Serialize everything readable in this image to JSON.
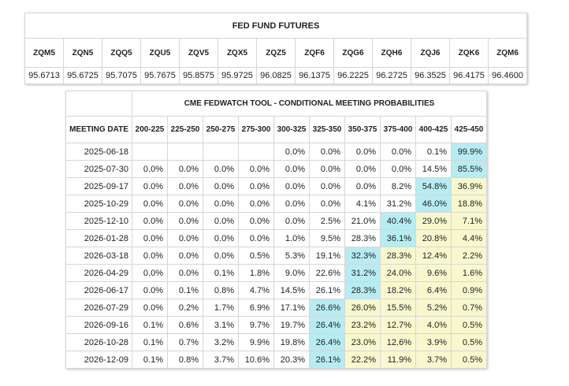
{
  "futures": {
    "title": "FED FUND FUTURES",
    "contracts": [
      {
        "code": "ZQM5",
        "price": "95.6713"
      },
      {
        "code": "ZQN5",
        "price": "95.6725"
      },
      {
        "code": "ZQQ5",
        "price": "95.7075"
      },
      {
        "code": "ZQU5",
        "price": "95.7675"
      },
      {
        "code": "ZQV5",
        "price": "95.8575"
      },
      {
        "code": "ZQX5",
        "price": "95.9725"
      },
      {
        "code": "ZQZ5",
        "price": "96.0825"
      },
      {
        "code": "ZQF6",
        "price": "96.1375"
      },
      {
        "code": "ZQG6",
        "price": "96.2225"
      },
      {
        "code": "ZQH6",
        "price": "96.2725"
      },
      {
        "code": "ZQJ6",
        "price": "96.3525"
      },
      {
        "code": "ZQK6",
        "price": "96.4175"
      },
      {
        "code": "ZQM6",
        "price": "96.4600"
      }
    ]
  },
  "probabilities": {
    "title": "CME FEDWATCH TOOL - CONDITIONAL MEETING PROBABILITIES",
    "date_header": "MEETING DATE",
    "ranges": [
      "200-225",
      "225-250",
      "250-275",
      "275-300",
      "300-325",
      "325-350",
      "350-375",
      "375-400",
      "400-425",
      "425-450"
    ],
    "colors": {
      "max": "#b7ecf2",
      "above_max": "#f8f8cf"
    },
    "rows": [
      {
        "date": "2025-06-18",
        "values": [
          "",
          "",
          "",
          "",
          "0.0%",
          "0.0%",
          "0.0%",
          "0.0%",
          "0.1%",
          "99.9%"
        ],
        "max_index": 9
      },
      {
        "date": "2025-07-30",
        "values": [
          "0.0%",
          "0.0%",
          "0.0%",
          "0.0%",
          "0.0%",
          "0.0%",
          "0.0%",
          "0.0%",
          "14.5%",
          "85.5%"
        ],
        "max_index": 9
      },
      {
        "date": "2025-09-17",
        "values": [
          "0.0%",
          "0.0%",
          "0.0%",
          "0.0%",
          "0.0%",
          "0.0%",
          "0.0%",
          "8.2%",
          "54.8%",
          "36.9%"
        ],
        "max_index": 8
      },
      {
        "date": "2025-10-29",
        "values": [
          "0.0%",
          "0.0%",
          "0.0%",
          "0.0%",
          "0.0%",
          "0.0%",
          "4.1%",
          "31.2%",
          "46.0%",
          "18.8%"
        ],
        "max_index": 8
      },
      {
        "date": "2025-12-10",
        "values": [
          "0.0%",
          "0.0%",
          "0.0%",
          "0.0%",
          "0.0%",
          "2.5%",
          "21.0%",
          "40.4%",
          "29.0%",
          "7.1%"
        ],
        "max_index": 7
      },
      {
        "date": "2026-01-28",
        "values": [
          "0.0%",
          "0.0%",
          "0.0%",
          "0.0%",
          "1.0%",
          "9.5%",
          "28.3%",
          "36.1%",
          "20.8%",
          "4.4%"
        ],
        "max_index": 7
      },
      {
        "date": "2026-03-18",
        "values": [
          "0.0%",
          "0.0%",
          "0.0%",
          "0.5%",
          "5.3%",
          "19.1%",
          "32.3%",
          "28.3%",
          "12.4%",
          "2.2%"
        ],
        "max_index": 6
      },
      {
        "date": "2026-04-29",
        "values": [
          "0.0%",
          "0.0%",
          "0.1%",
          "1.8%",
          "9.0%",
          "22.6%",
          "31.2%",
          "24.0%",
          "9.6%",
          "1.6%"
        ],
        "max_index": 6
      },
      {
        "date": "2026-06-17",
        "values": [
          "0.0%",
          "0.1%",
          "0.8%",
          "4.7%",
          "14.5%",
          "26.1%",
          "28.3%",
          "18.2%",
          "6.4%",
          "0.9%"
        ],
        "max_index": 6
      },
      {
        "date": "2026-07-29",
        "values": [
          "0.0%",
          "0.2%",
          "1.7%",
          "6.9%",
          "17.1%",
          "26.6%",
          "26.0%",
          "15.5%",
          "5.2%",
          "0.7%"
        ],
        "max_index": 5
      },
      {
        "date": "2026-09-16",
        "values": [
          "0.1%",
          "0.6%",
          "3.1%",
          "9.7%",
          "19.7%",
          "26.4%",
          "23.2%",
          "12.7%",
          "4.0%",
          "0.5%"
        ],
        "max_index": 5
      },
      {
        "date": "2026-10-28",
        "values": [
          "0.1%",
          "0.7%",
          "3.2%",
          "9.9%",
          "19.8%",
          "26.4%",
          "23.0%",
          "12.6%",
          "3.9%",
          "0.5%"
        ],
        "max_index": 5
      },
      {
        "date": "2026-12-09",
        "values": [
          "0.1%",
          "0.8%",
          "3.7%",
          "10.6%",
          "20.3%",
          "26.1%",
          "22.2%",
          "11.9%",
          "3.7%",
          "0.5%"
        ],
        "max_index": 5
      }
    ]
  }
}
